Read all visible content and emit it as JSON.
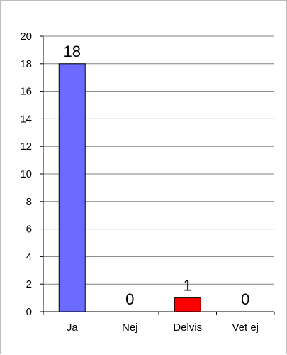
{
  "chart_data": {
    "type": "bar",
    "categories": [
      "Ja",
      "Nej",
      "Delvis",
      "Vet ej"
    ],
    "values": [
      18,
      0,
      1,
      0
    ],
    "bar_colors": [
      "#6b6bff",
      "#6b6bff",
      "#ff0000",
      "#6b6bff"
    ],
    "ylim": [
      0,
      20
    ],
    "yticks": [
      0,
      2,
      4,
      6,
      8,
      10,
      12,
      14,
      16,
      18,
      20
    ],
    "grid": true,
    "gridline_color": "#808080",
    "title": "",
    "xlabel": "",
    "ylabel": ""
  }
}
